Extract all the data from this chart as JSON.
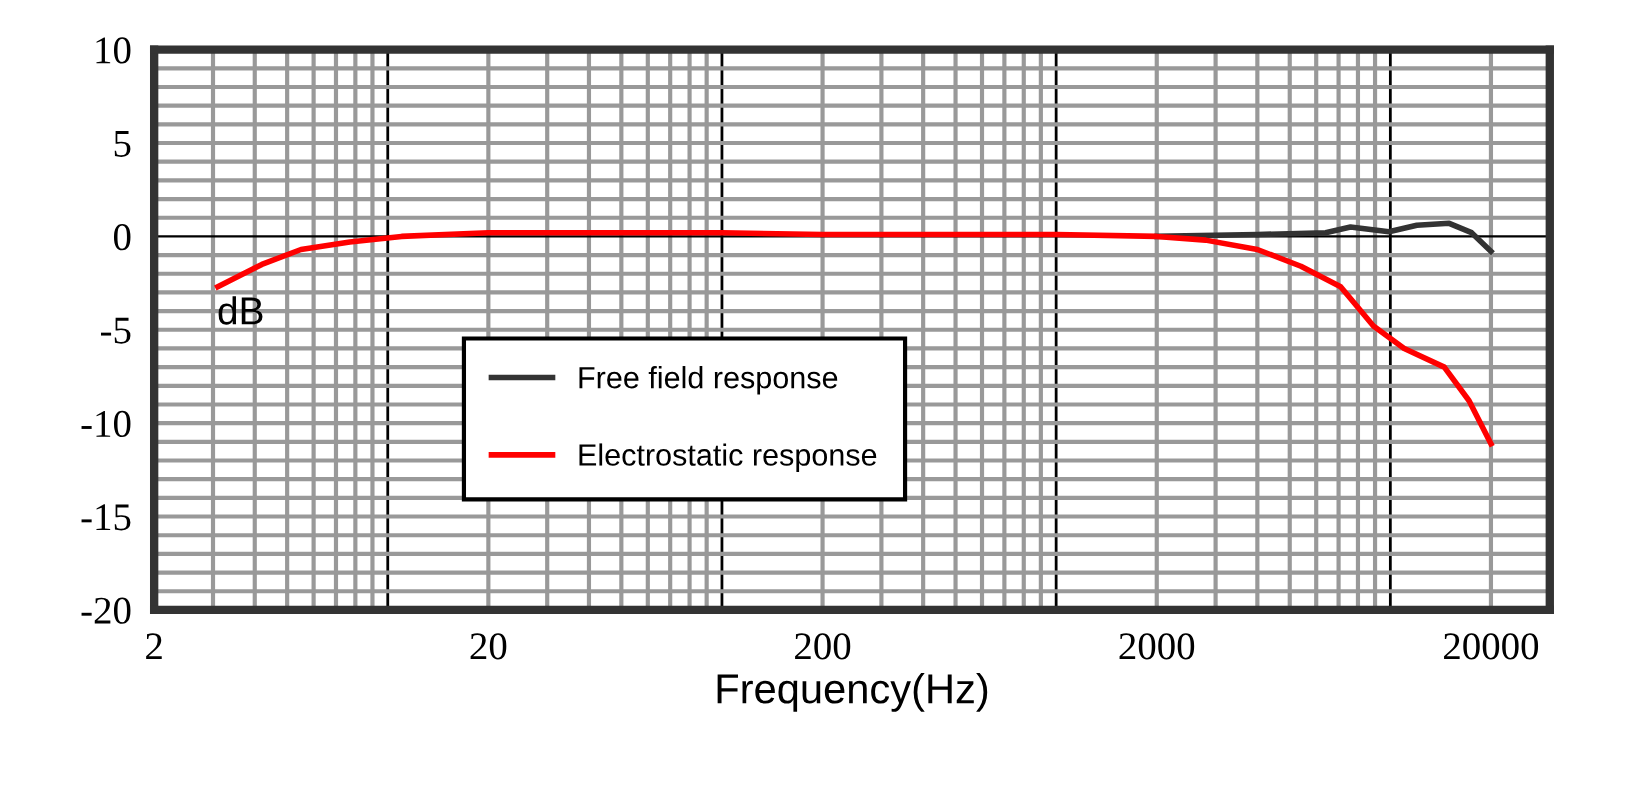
{
  "chart_data": {
    "type": "line",
    "xlabel": "Frequency(Hz)",
    "ylabel": "dB",
    "log": "x",
    "xlim": [
      2,
      30000
    ],
    "xticks": [
      2,
      20,
      200,
      2000,
      20000
    ],
    "ylim": [
      -20,
      10
    ],
    "yticks": [
      -20,
      -15,
      -10,
      -5,
      0,
      5,
      10
    ],
    "grid": true,
    "legend": "bottom",
    "line_style": "solid",
    "marker": "none",
    "series": [
      {
        "name": "Free field response",
        "color": "#333333",
        "x": [
          2000,
          4000,
          6400,
          7600,
          9900,
          12000,
          15000,
          17500,
          20000
        ],
        "values": [
          0,
          0.1,
          0.2,
          0.5,
          0.25,
          0.6,
          0.7,
          0.2,
          -0.8
        ]
      },
      {
        "name": "Electrostatic response",
        "color": "#ff0000",
        "x": [
          3.1,
          4.2,
          5.5,
          7.7,
          11,
          20,
          50,
          100,
          200,
          500,
          1000,
          2000,
          2800,
          4000,
          5400,
          7100,
          8900,
          11000,
          14500,
          17200,
          20000
        ],
        "values": [
          -2.7,
          -1.5,
          -0.7,
          -0.3,
          0,
          0.2,
          0.2,
          0.2,
          0.1,
          0.1,
          0.1,
          0,
          -0.2,
          -0.7,
          -1.6,
          -2.7,
          -4.8,
          -6,
          -7,
          -8.8,
          -11.1
        ]
      }
    ]
  }
}
